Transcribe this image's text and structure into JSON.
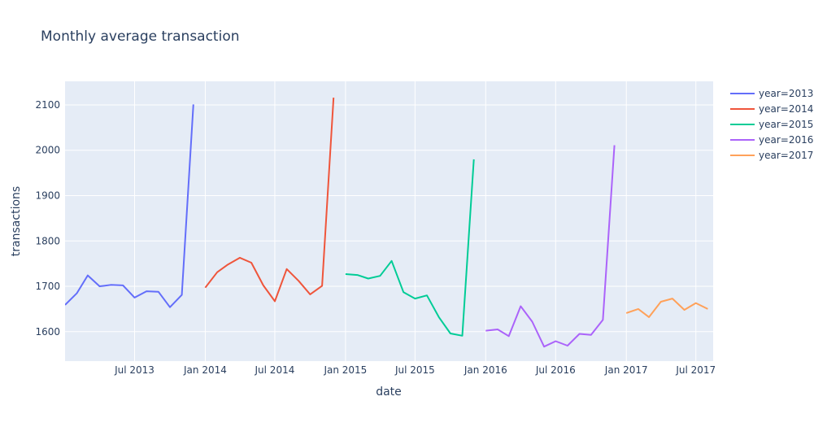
{
  "chart_data": {
    "type": "line",
    "title": "Monthly average transaction",
    "xlabel": "date",
    "ylabel": "transactions",
    "x_ticks": [
      "Jul 2013",
      "Jan 2014",
      "Jul 2014",
      "Jan 2015",
      "Jul 2015",
      "Jan 2016",
      "Jul 2016",
      "Jan 2017",
      "Jul 2017"
    ],
    "x_tick_dates": [
      "2013-07-01",
      "2014-01-01",
      "2014-07-01",
      "2015-01-01",
      "2015-07-01",
      "2016-01-01",
      "2016-07-01",
      "2017-01-01",
      "2017-07-01"
    ],
    "y_ticks": [
      1600,
      1700,
      1800,
      1900,
      2000,
      2100
    ],
    "xlim": [
      "2013-01-01",
      "2017-08-15"
    ],
    "ylim": [
      1535,
      2152
    ],
    "grid": true,
    "legend_position": "top-right",
    "series": [
      {
        "name": "year=2013",
        "color": "#636efa",
        "points": [
          [
            "2013-01-01",
            1659
          ],
          [
            "2013-02-01",
            1685
          ],
          [
            "2013-03-01",
            1724
          ],
          [
            "2013-04-01",
            1700
          ],
          [
            "2013-05-01",
            1703
          ],
          [
            "2013-06-01",
            1702
          ],
          [
            "2013-07-01",
            1675
          ],
          [
            "2013-08-01",
            1689
          ],
          [
            "2013-09-01",
            1688
          ],
          [
            "2013-10-01",
            1654
          ],
          [
            "2013-11-01",
            1681
          ],
          [
            "2013-12-01",
            2101
          ]
        ]
      },
      {
        "name": "year=2014",
        "color": "#EF553B",
        "points": [
          [
            "2014-01-01",
            1697
          ],
          [
            "2014-02-01",
            1731
          ],
          [
            "2014-03-01",
            1748
          ],
          [
            "2014-04-01",
            1763
          ],
          [
            "2014-05-01",
            1752
          ],
          [
            "2014-06-01",
            1702
          ],
          [
            "2014-07-01",
            1667
          ],
          [
            "2014-08-01",
            1738
          ],
          [
            "2014-09-01",
            1712
          ],
          [
            "2014-10-01",
            1682
          ],
          [
            "2014-11-01",
            1701
          ],
          [
            "2014-12-01",
            2116
          ]
        ]
      },
      {
        "name": "year=2015",
        "color": "#00cc96",
        "points": [
          [
            "2015-01-01",
            1727
          ],
          [
            "2015-02-01",
            1725
          ],
          [
            "2015-03-01",
            1717
          ],
          [
            "2015-04-01",
            1723
          ],
          [
            "2015-05-01",
            1756
          ],
          [
            "2015-06-01",
            1687
          ],
          [
            "2015-07-01",
            1673
          ],
          [
            "2015-08-01",
            1680
          ],
          [
            "2015-09-01",
            1632
          ],
          [
            "2015-10-01",
            1596
          ],
          [
            "2015-11-01",
            1591
          ],
          [
            "2015-12-01",
            1980
          ]
        ]
      },
      {
        "name": "year=2016",
        "color": "#ab63fa",
        "points": [
          [
            "2016-01-01",
            1602
          ],
          [
            "2016-02-01",
            1605
          ],
          [
            "2016-03-01",
            1590
          ],
          [
            "2016-04-01",
            1656
          ],
          [
            "2016-05-01",
            1622
          ],
          [
            "2016-06-01",
            1567
          ],
          [
            "2016-07-01",
            1579
          ],
          [
            "2016-08-01",
            1569
          ],
          [
            "2016-09-01",
            1595
          ],
          [
            "2016-10-01",
            1593
          ],
          [
            "2016-11-01",
            1626
          ],
          [
            "2016-12-01",
            2011
          ]
        ]
      },
      {
        "name": "year=2017",
        "color": "#FFA15A",
        "points": [
          [
            "2017-01-01",
            1641
          ],
          [
            "2017-02-01",
            1650
          ],
          [
            "2017-03-01",
            1632
          ],
          [
            "2017-04-01",
            1666
          ],
          [
            "2017-05-01",
            1673
          ],
          [
            "2017-06-01",
            1648
          ],
          [
            "2017-07-01",
            1663
          ],
          [
            "2017-08-01",
            1650
          ]
        ]
      }
    ]
  }
}
